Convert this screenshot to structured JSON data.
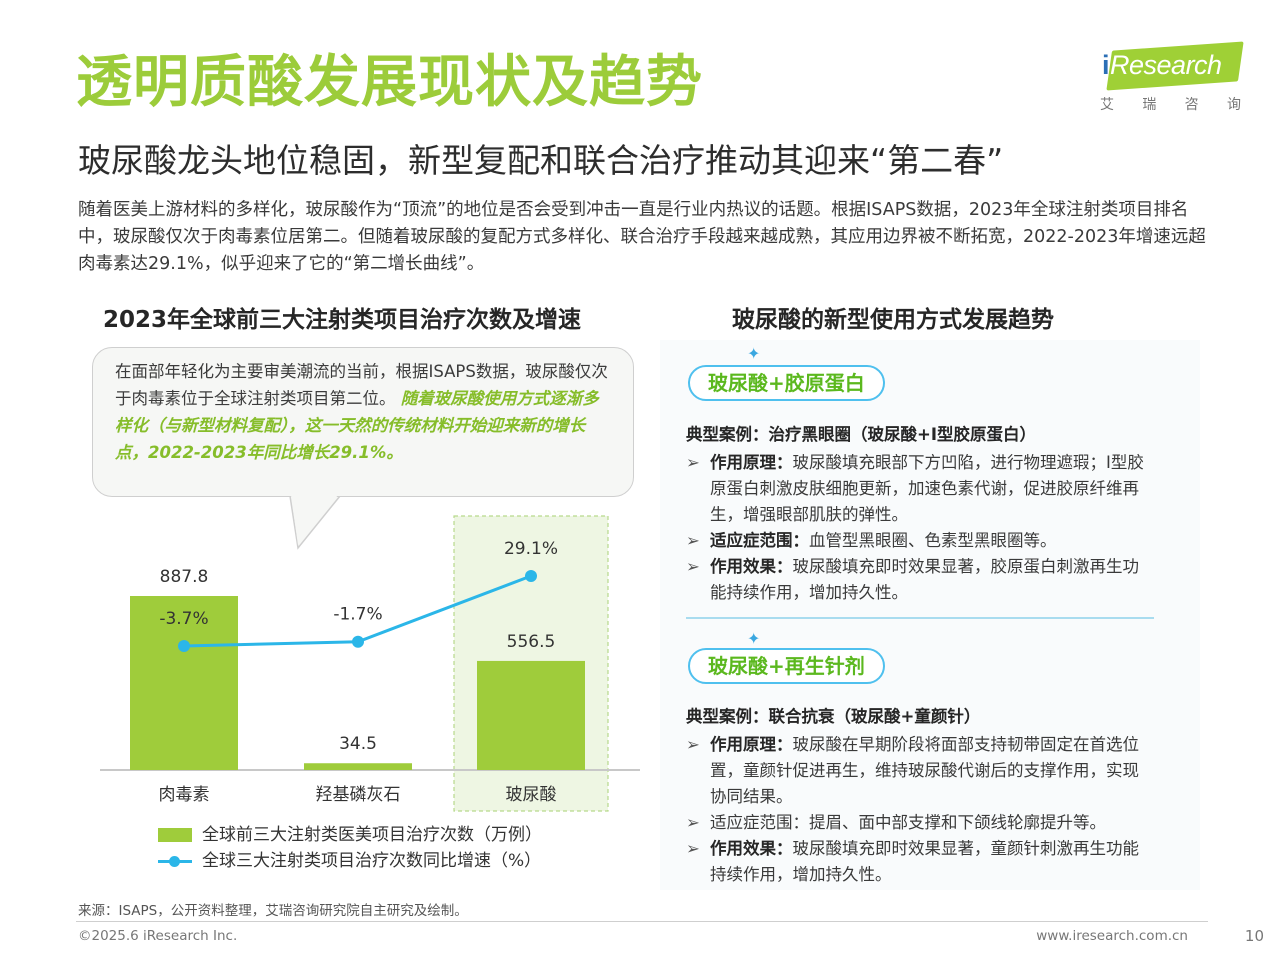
{
  "header": {
    "title": "透明质酸发展现状及趋势",
    "subtitle": "玻尿酸龙头地位稳固，新型复配和联合治疗推动其迎来“第二春”",
    "intro": "随着医美上游材料的多样化，玻尿酸作为“顶流”的地位是否会受到冲击一直是行业内热议的话题。根据ISAPS数据，2023年全球注射类项目排名中，玻尿酸仅次于肉毒素位居第二。但随着玻尿酸的复配方式多样化、联合治疗手段越来越成熟，其应用边界被不断拓宽，2022-2023年增速远超肉毒素达29.1%，似乎迎来了它的“第二增长曲线”。"
  },
  "logo": {
    "brand_i": "i",
    "brand_rest": "Research",
    "sub_chars": [
      "艾",
      "瑞",
      "咨",
      "询"
    ],
    "color": "#9fd036"
  },
  "left": {
    "heading": "2023年全球前三大注射类项目治疗次数及增速",
    "callout_plain": "在面部年轻化为主要审美潮流的当前，根据ISAPS数据，玻尿酸仅次于肉毒素位于全球注射类项目第二位。",
    "callout_highlight": "随着玻尿酸使用方式逐渐多样化（与新型材料复配），这一天然的传统材料开始迎来新的增长点，2022-2023年同比增长29.1%。"
  },
  "chart_data": {
    "type": "bar",
    "categories": [
      "肉毒素",
      "羟基磷灰石",
      "玻尿酸"
    ],
    "series": [
      {
        "name": "全球前三大注射类医美项目治疗次数（万例）",
        "type": "bar",
        "values": [
          887.8,
          34.5,
          556.5
        ],
        "labels": [
          "887.8",
          "34.5",
          "556.5"
        ],
        "color": "#9fcc3b"
      },
      {
        "name": "全球三大注射类项目治疗次数同比增速（%）",
        "type": "line",
        "values": [
          -3.7,
          -1.7,
          29.1
        ],
        "labels": [
          "-3.7%",
          "-1.7%",
          "29.1%"
        ],
        "color": "#2bb6e8"
      }
    ],
    "highlight_category": "玻尿酸",
    "legend_position": "bottom-left",
    "grid": false
  },
  "right": {
    "heading": "玻尿酸的新型使用方式发展趋势",
    "sections": [
      {
        "tag": "玻尿酸+胶原蛋白",
        "case": "典型案例：治疗黑眼圈（玻尿酸+I型胶原蛋白）",
        "bullets": [
          {
            "label": "作用原理：",
            "text": "玻尿酸填充眼部下方凹陷，进行物理遮瑕；I型胶原蛋白刺激皮肤细胞更新，加速色素代谢，促进胶原纤维再生，增强眼部肌肤的弹性。"
          },
          {
            "label": "适应症范围：",
            "text": "血管型黑眼圈、色素型黑眼圈等。"
          },
          {
            "label": "作用效果：",
            "text": "玻尿酸填充即时效果显著，胶原蛋白刺激再生功能持续作用，增加持久性。"
          }
        ]
      },
      {
        "tag": "玻尿酸+再生针剂",
        "case": "典型案例：联合抗衰（玻尿酸+童颜针）",
        "bullets": [
          {
            "label": "作用原理：",
            "text": "玻尿酸在早期阶段将面部支持韧带固定在首选位置，童颜针促进再生，维持玻尿酸代谢后的支撑作用，实现协同结果。"
          },
          {
            "label": "适应症范围：",
            "text": "提眉、面中部支撑和下颌线轮廓提升等。"
          },
          {
            "label": "作用效果：",
            "text": "玻尿酸填充即时效果显著，童颜针刺激再生功能持续作用，增加持久性。"
          }
        ]
      }
    ],
    "bullet_marker": "➢",
    "sparkle": "✦"
  },
  "footer": {
    "source": "来源：ISAPS，公开资料整理，艾瑞咨询研究院自主研究及绘制。",
    "copyright": "©2025.6 iResearch Inc.",
    "website": "www.iresearch.com.cn",
    "page": "10"
  }
}
